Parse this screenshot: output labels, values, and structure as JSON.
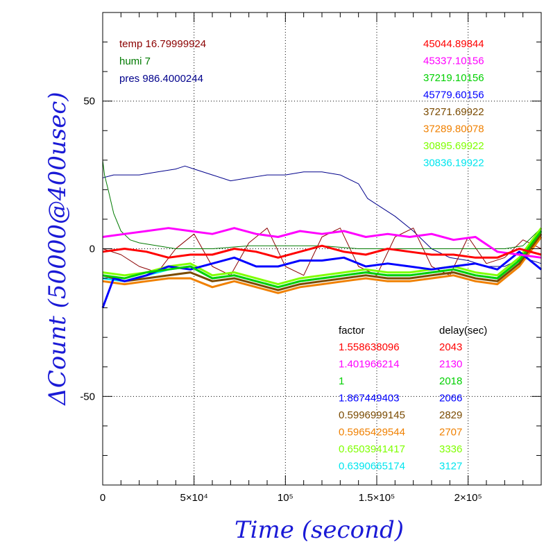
{
  "chart_data": {
    "type": "line",
    "xlabel": "Time (second)",
    "ylabel": "ΔCount (50000@400usec)",
    "xlim": [
      0,
      240000
    ],
    "ylim": [
      -80,
      80
    ],
    "grid": true,
    "x_ticks": [
      {
        "value": 0,
        "label": "0"
      },
      {
        "value": 50000,
        "label": "5×10⁴"
      },
      {
        "value": 100000,
        "label": "10⁵"
      },
      {
        "value": 150000,
        "label": "1.5×10⁵"
      },
      {
        "value": 200000,
        "label": "2×10⁵"
      }
    ],
    "y_ticks": [
      {
        "value": 50,
        "label": "50"
      },
      {
        "value": 0,
        "label": "0"
      },
      {
        "value": -50,
        "label": "-50"
      }
    ],
    "env": [
      {
        "name": "temp",
        "value": "16.79999924",
        "color": "#8b0000"
      },
      {
        "name": "humi",
        "value": "7",
        "color": "#007a00"
      },
      {
        "name": "pres",
        "value": "986.4000244",
        "color": "#00008b"
      }
    ],
    "factor_header": "factor",
    "delay_header": "delay(sec)",
    "series": [
      {
        "count": "45044.89844",
        "factor": "1.558638096",
        "delay": "2043",
        "color": "#ff0000",
        "width": 3,
        "x": [
          0,
          12000,
          24000,
          36000,
          48000,
          60000,
          72000,
          84000,
          96000,
          108000,
          120000,
          132000,
          144000,
          156000,
          168000,
          180000,
          192000,
          204000,
          216000,
          228000,
          240000
        ],
        "y": [
          -1,
          0,
          -1,
          -3,
          -2,
          -2,
          0,
          -1,
          -3,
          -1,
          1,
          -1,
          -2,
          0,
          -1,
          -2,
          -2,
          -3,
          -3,
          0,
          -2
        ]
      },
      {
        "count": "45337.10156",
        "factor": "1.401966214",
        "delay": "2130",
        "color": "#ff00ff",
        "width": 3,
        "x": [
          0,
          12000,
          24000,
          36000,
          48000,
          60000,
          72000,
          84000,
          96000,
          108000,
          120000,
          132000,
          144000,
          156000,
          168000,
          180000,
          192000,
          204000,
          216000,
          228000,
          240000
        ],
        "y": [
          4,
          5,
          6,
          7,
          6,
          5,
          7,
          5,
          4,
          6,
          5,
          6,
          4,
          5,
          4,
          5,
          3,
          4,
          -1,
          -2,
          -3
        ]
      },
      {
        "count": "37219.10156",
        "factor": "1",
        "delay": "2018",
        "color": "#00d000",
        "width": 3,
        "x": [
          0,
          12000,
          24000,
          36000,
          48000,
          60000,
          72000,
          84000,
          96000,
          108000,
          120000,
          132000,
          144000,
          156000,
          168000,
          180000,
          192000,
          204000,
          216000,
          228000,
          240000
        ],
        "y": [
          -9,
          -10,
          -8,
          -7,
          -6,
          -10,
          -9,
          -11,
          -13,
          -11,
          -10,
          -9,
          -8,
          -9,
          -9,
          -8,
          -7,
          -9,
          -10,
          -4,
          6
        ]
      },
      {
        "count": "45779.60156",
        "factor": "1.867449403",
        "delay": "2066",
        "color": "#0000ff",
        "width": 3,
        "x": [
          0,
          6000,
          12000,
          24000,
          36000,
          48000,
          60000,
          72000,
          84000,
          96000,
          108000,
          120000,
          132000,
          144000,
          156000,
          168000,
          180000,
          192000,
          204000,
          216000,
          228000,
          240000
        ],
        "y": [
          -20,
          -10,
          -11,
          -9,
          -6,
          -7,
          -5,
          -3,
          -6,
          -6,
          -4,
          -4,
          -3,
          -6,
          -5,
          -6,
          -7,
          -6,
          -5,
          -7,
          -1,
          -7
        ]
      },
      {
        "count": "37271.69922",
        "factor": "0.5996999145",
        "delay": "2829",
        "color": "#7a4a00",
        "width": 3,
        "x": [
          0,
          12000,
          24000,
          36000,
          48000,
          60000,
          72000,
          84000,
          96000,
          108000,
          120000,
          132000,
          144000,
          156000,
          168000,
          180000,
          192000,
          204000,
          216000,
          228000,
          240000
        ],
        "y": [
          -9,
          -11,
          -10,
          -9,
          -8,
          -11,
          -10,
          -12,
          -14,
          -12,
          -11,
          -10,
          -9,
          -10,
          -10,
          -9,
          -8,
          -10,
          -11,
          -5,
          5
        ]
      },
      {
        "count": "37289.80078",
        "factor": "0.5965429544",
        "delay": "2707",
        "color": "#f08000",
        "width": 3,
        "x": [
          0,
          12000,
          24000,
          36000,
          48000,
          60000,
          72000,
          84000,
          96000,
          108000,
          120000,
          132000,
          144000,
          156000,
          168000,
          180000,
          192000,
          204000,
          216000,
          228000,
          240000
        ],
        "y": [
          -11,
          -12,
          -11,
          -10,
          -10,
          -13,
          -11,
          -13,
          -15,
          -13,
          -12,
          -11,
          -10,
          -11,
          -11,
          -10,
          -9,
          -11,
          -12,
          -6,
          4
        ]
      },
      {
        "count": "30895.69922",
        "factor": "0.6503941417",
        "delay": "3336",
        "color": "#7fff00",
        "width": 3,
        "x": [
          0,
          12000,
          24000,
          36000,
          48000,
          60000,
          72000,
          84000,
          96000,
          108000,
          120000,
          132000,
          144000,
          156000,
          168000,
          180000,
          192000,
          204000,
          216000,
          228000,
          240000
        ],
        "y": [
          -8,
          -9,
          -8,
          -6,
          -5,
          -9,
          -8,
          -10,
          -12,
          -10,
          -9,
          -8,
          -7,
          -8,
          -8,
          -7,
          -6,
          -8,
          -9,
          -3,
          7
        ]
      },
      {
        "count": "30836.19922",
        "factor": "0.6390665174",
        "delay": "3127",
        "color": "#00e5ee",
        "width": 3,
        "x": [
          0,
          12000,
          24000,
          36000,
          48000,
          60000,
          72000,
          84000,
          96000,
          108000,
          120000,
          132000,
          144000,
          156000,
          168000,
          180000,
          192000,
          204000,
          216000,
          228000,
          240000
        ],
        "y": [
          -10,
          -11,
          -9,
          -7,
          -6,
          -10,
          -9,
          -11,
          -13,
          -11,
          -10,
          -9,
          -8,
          -9,
          -9,
          -8,
          -7,
          -9,
          -10,
          -4,
          6
        ]
      }
    ],
    "env_curves": [
      {
        "name": "pres",
        "color": "#00008b",
        "width": 1,
        "x": [
          0,
          6000,
          20000,
          30000,
          40000,
          45000,
          50000,
          60000,
          70000,
          80000,
          90000,
          100000,
          110000,
          120000,
          130000,
          140000,
          145000,
          150000,
          160000,
          170000,
          180000,
          190000,
          200000,
          210000,
          220000,
          230000,
          240000
        ],
        "y": [
          24,
          25,
          25,
          26,
          27,
          28,
          27,
          25,
          23,
          24,
          25,
          25,
          26,
          26,
          25,
          22,
          17,
          15,
          11,
          6,
          0,
          -3,
          -4,
          -6,
          -6,
          -3,
          -5
        ]
      },
      {
        "name": "temp",
        "color": "#8b0000",
        "width": 1,
        "x": [
          0,
          10000,
          20000,
          30000,
          40000,
          50000,
          60000,
          70000,
          80000,
          90000,
          100000,
          110000,
          120000,
          130000,
          140000,
          150000,
          160000,
          170000,
          180000,
          190000,
          200000,
          210000,
          220000,
          230000,
          240000
        ],
        "y": [
          0,
          -2,
          -6,
          -8,
          0,
          5,
          -6,
          -9,
          2,
          7,
          -6,
          -9,
          4,
          7,
          -6,
          -9,
          4,
          7,
          -6,
          -9,
          4,
          -5,
          -3,
          3,
          0
        ]
      },
      {
        "name": "humi",
        "color": "#007a00",
        "width": 1,
        "x": [
          0,
          1000,
          3000,
          6000,
          10000,
          15000,
          20000,
          30000,
          40000,
          60000,
          80000,
          100000,
          120000,
          140000,
          160000,
          180000,
          200000,
          220000,
          230000,
          240000
        ],
        "y": [
          30,
          25,
          20,
          12,
          6,
          3,
          2,
          1,
          0,
          0,
          1,
          1,
          1,
          0,
          0,
          0,
          0,
          0,
          1,
          7
        ]
      }
    ]
  }
}
